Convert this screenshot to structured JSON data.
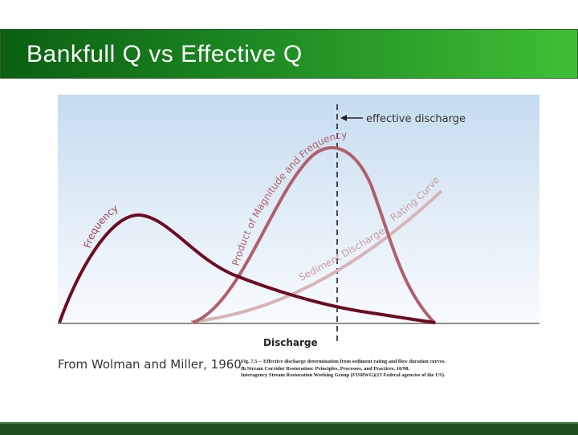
{
  "slide": {
    "title": "Bankfull Q vs Effective Q"
  },
  "figure": {
    "effective_label": "effective discharge",
    "frequency_label": "Frequency",
    "product_label": "Product of Magnitude and Frequency",
    "rating_label": "Rating Curve",
    "sediment_label": "Sediment Discharge",
    "xaxis_label": "Discharge",
    "credit": "From Wolman and Miller, 1960.",
    "caption_line1": "Fig. 7.5 -- Effective discharge determination from sediment rating and flow duration curves.",
    "caption_line2": "In Stream Corridor Restoration: Principles, Processes, and Practices. 10/98.",
    "caption_line3": "Interagency Stream Restoration Working Group (FISRWG)(15 Federal agencies of the US)."
  },
  "colors": {
    "frequency_curve": "#6e0b22",
    "product_curve": "#b15f6d",
    "rating_curve": "#d8b4b6",
    "title_green": "#1d8a22"
  }
}
